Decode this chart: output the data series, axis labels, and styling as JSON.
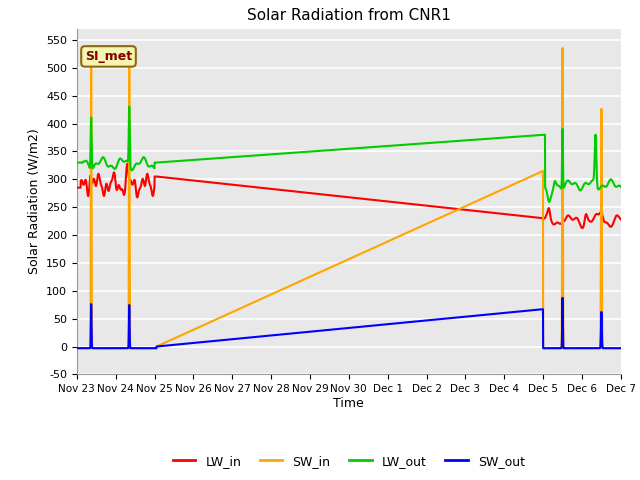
{
  "title": "Solar Radiation from CNR1",
  "xlabel": "Time",
  "ylabel": "Solar Radiation (W/m2)",
  "ylim": [
    -50,
    570
  ],
  "xlim": [
    0,
    14
  ],
  "background_color": "#e8e8e8",
  "grid_color": "white",
  "annotation_text": "SI_met",
  "annotation_bg": "#f5f5b0",
  "annotation_border": "#8b6914",
  "annotation_text_color": "#800000",
  "xtick_labels": [
    "Nov 23",
    "Nov 24",
    "Nov 25",
    "Nov 26",
    "Nov 27",
    "Nov 28",
    "Nov 29",
    "Nov 30",
    "Dec 1",
    "Dec 2",
    "Dec 3",
    "Dec 4",
    "Dec 5",
    "Dec 6",
    "Dec 7"
  ],
  "xtick_positions": [
    0,
    1,
    2,
    3,
    4,
    5,
    6,
    7,
    8,
    9,
    10,
    11,
    12,
    13,
    14
  ],
  "ytick_labels": [
    "-50",
    "0",
    "50",
    "100",
    "150",
    "200",
    "250",
    "300",
    "350",
    "400",
    "450",
    "500",
    "550"
  ],
  "ytick_positions": [
    -50,
    0,
    50,
    100,
    150,
    200,
    250,
    300,
    350,
    400,
    450,
    500,
    550
  ],
  "legend_labels": [
    "LW_in",
    "SW_in",
    "LW_out",
    "SW_out"
  ],
  "legend_colors": [
    "#ff0000",
    "#ffa500",
    "#00cc00",
    "#0000ff"
  ],
  "line_width": 1.5
}
